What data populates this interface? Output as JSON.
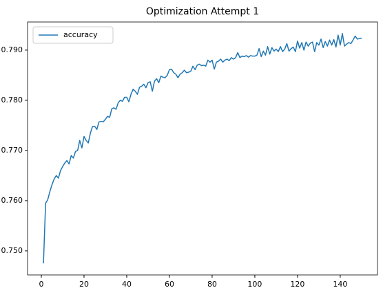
{
  "chart_data": {
    "type": "line",
    "title": "Optimization Attempt 1",
    "x": [
      1,
      2,
      3,
      4,
      5,
      6,
      7,
      8,
      9,
      10,
      11,
      12,
      13,
      14,
      15,
      16,
      17,
      18,
      19,
      20,
      21,
      22,
      23,
      24,
      25,
      26,
      27,
      28,
      29,
      30,
      31,
      32,
      33,
      34,
      35,
      36,
      37,
      38,
      39,
      40,
      41,
      42,
      43,
      44,
      45,
      46,
      47,
      48,
      49,
      50,
      51,
      52,
      53,
      54,
      55,
      56,
      57,
      58,
      59,
      60,
      61,
      62,
      63,
      64,
      65,
      66,
      67,
      68,
      69,
      70,
      71,
      72,
      73,
      74,
      75,
      76,
      77,
      78,
      79,
      80,
      81,
      82,
      83,
      84,
      85,
      86,
      87,
      88,
      89,
      90,
      91,
      92,
      93,
      94,
      95,
      96,
      97,
      98,
      99,
      100,
      101,
      102,
      103,
      104,
      105,
      106,
      107,
      108,
      109,
      110,
      111,
      112,
      113,
      114,
      115,
      116,
      117,
      118,
      119,
      120,
      121,
      122,
      123,
      124,
      125,
      126,
      127,
      128,
      129,
      130,
      131,
      132,
      133,
      134,
      135,
      136,
      137,
      138,
      139,
      140,
      141,
      142,
      143,
      144,
      145,
      146,
      147,
      148,
      149,
      150
    ],
    "series": [
      {
        "name": "accuracy",
        "color": "#1f77b4",
        "values": [
          0.7475,
          0.7595,
          0.7602,
          0.7618,
          0.7632,
          0.7643,
          0.765,
          0.7645,
          0.766,
          0.7668,
          0.7675,
          0.768,
          0.7673,
          0.769,
          0.7685,
          0.7698,
          0.77,
          0.772,
          0.7705,
          0.7728,
          0.772,
          0.7715,
          0.7735,
          0.7748,
          0.7748,
          0.7742,
          0.7757,
          0.7758,
          0.7757,
          0.7762,
          0.7768,
          0.7766,
          0.7783,
          0.7785,
          0.7782,
          0.7795,
          0.78,
          0.7798,
          0.7806,
          0.7806,
          0.7797,
          0.7812,
          0.7822,
          0.7818,
          0.7812,
          0.7826,
          0.7828,
          0.7832,
          0.7825,
          0.7835,
          0.7837,
          0.7818,
          0.7838,
          0.7843,
          0.7835,
          0.7848,
          0.7846,
          0.7845,
          0.785,
          0.7861,
          0.7862,
          0.7855,
          0.7852,
          0.7845,
          0.7852,
          0.7855,
          0.786,
          0.7855,
          0.7856,
          0.7858,
          0.7868,
          0.7861,
          0.787,
          0.7872,
          0.7869,
          0.787,
          0.7868,
          0.788,
          0.7876,
          0.788,
          0.7862,
          0.7876,
          0.7878,
          0.7882,
          0.7876,
          0.788,
          0.7882,
          0.7879,
          0.7885,
          0.7882,
          0.7885,
          0.7895,
          0.7885,
          0.7888,
          0.7887,
          0.7889,
          0.7886,
          0.7889,
          0.7888,
          0.7888,
          0.789,
          0.7903,
          0.7887,
          0.7898,
          0.789,
          0.7907,
          0.7892,
          0.7905,
          0.7898,
          0.7902,
          0.7897,
          0.7907,
          0.7897,
          0.7902,
          0.7913,
          0.7898,
          0.7903,
          0.7906,
          0.7897,
          0.7918,
          0.7904,
          0.7915,
          0.79,
          0.7916,
          0.7908,
          0.7914,
          0.7916,
          0.7897,
          0.7915,
          0.791,
          0.7922,
          0.7905,
          0.7917,
          0.7908,
          0.792,
          0.791,
          0.7921,
          0.7906,
          0.793,
          0.791,
          0.7933,
          0.7908,
          0.7912,
          0.7915,
          0.7913,
          0.792,
          0.7928,
          0.7922,
          0.7923,
          0.7924
        ]
      }
    ],
    "xlim": [
      -6.45,
      157.45
    ],
    "xticks": [
      0,
      20,
      40,
      60,
      80,
      100,
      120,
      140
    ],
    "ylim": [
      0.7452,
      0.7956
    ],
    "yticks": [
      {
        "value": 0.75,
        "label": "0.750"
      },
      {
        "value": 0.76,
        "label": "0.760"
      },
      {
        "value": 0.77,
        "label": "0.770"
      },
      {
        "value": 0.78,
        "label": "0.780"
      },
      {
        "value": 0.79,
        "label": "0.790"
      }
    ],
    "legend": "upper left",
    "grid": false
  }
}
